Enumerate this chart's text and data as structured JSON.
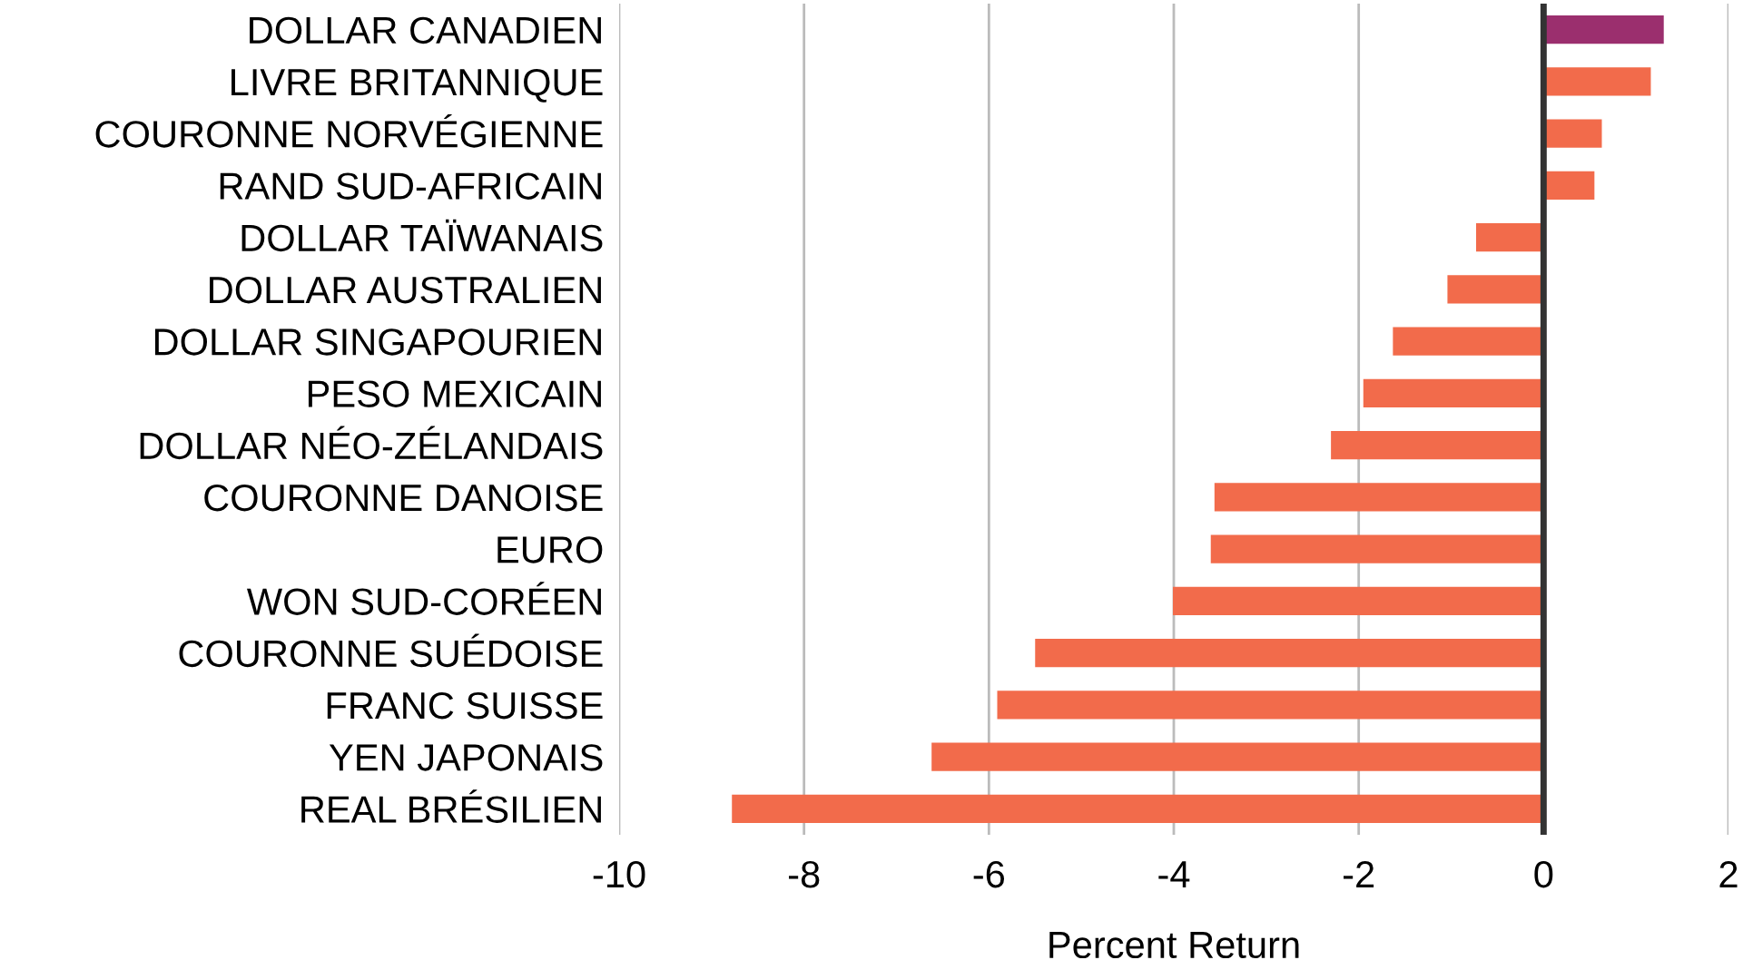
{
  "chart_data": {
    "type": "bar",
    "orientation": "horizontal",
    "xlabel": "Percent Return",
    "categories": [
      "DOLLAR CANADIEN",
      "LIVRE BRITANNIQUE",
      "COURONNE NORVÉGIENNE",
      "RAND SUD-AFRICAIN",
      "DOLLAR TAÏWANAIS",
      "DOLLAR AUSTRALIEN",
      "DOLLAR SINGAPOURIEN",
      "PESO MEXICAIN",
      "DOLLAR NÉO-ZÉLANDAIS",
      "COURONNE DANOISE",
      "EURO",
      "WON SUD-CORÉEN",
      "COURONNE SUÉDOISE",
      "FRANC SUISSE",
      "YEN JAPONAIS",
      "REAL BRÉSILIEN"
    ],
    "values": [
      1.3,
      1.16,
      0.63,
      0.55,
      -0.73,
      -1.04,
      -1.63,
      -1.95,
      -2.3,
      -3.56,
      -3.6,
      -4.01,
      -5.5,
      -5.91,
      -6.62,
      -8.78
    ],
    "colors": [
      "#9b2f6e",
      "#f26b4b",
      "#f26b4b",
      "#f26b4b",
      "#f26b4b",
      "#f26b4b",
      "#f26b4b",
      "#f26b4b",
      "#f26b4b",
      "#f26b4b",
      "#f26b4b",
      "#f26b4b",
      "#f26b4b",
      "#f26b4b",
      "#f26b4b",
      "#f26b4b"
    ],
    "xlim": [
      -10,
      2
    ],
    "xticks": [
      -10,
      -8,
      -6,
      -4,
      -2,
      0,
      2
    ],
    "grid": "x",
    "ref_lines": [
      {
        "axis": "x",
        "value": 0,
        "color": "#333333"
      }
    ]
  }
}
